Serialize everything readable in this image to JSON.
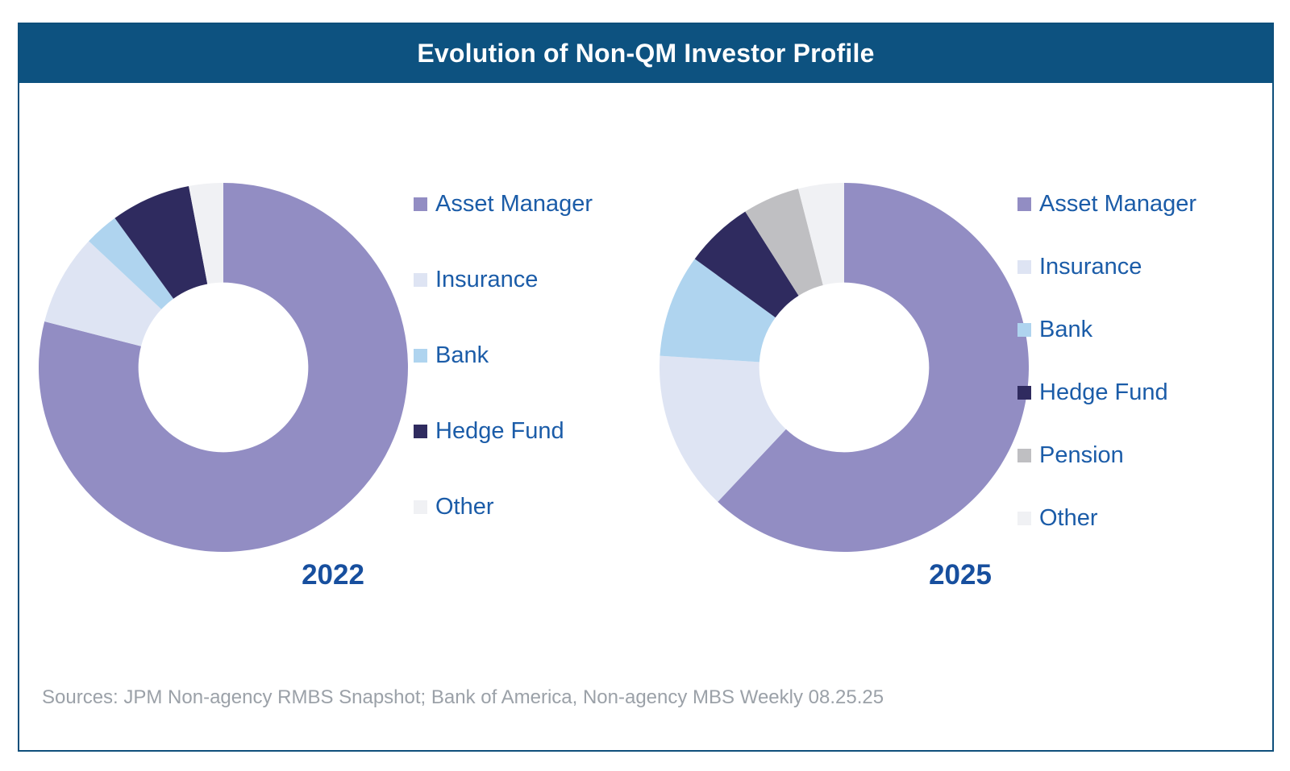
{
  "header": {
    "title": "Evolution of Non-QM Investor Profile"
  },
  "source_note": "Sources: JPM Non-agency RMBS Snapshot; Bank of America, Non-agency MBS Weekly 08.25.25",
  "colors": {
    "header_bg": "#0D5280",
    "card_border": "#0E4F7B",
    "legend_text": "#1B5CA8",
    "year_text": "#174F9E",
    "source_text": "#9BA1A8",
    "series": {
      "Asset Manager": "#928DC3",
      "Insurance": "#DEE4F3",
      "Bank": "#AFD4EF",
      "Hedge Fund": "#2F2B5F",
      "Pension": "#BFBFC2",
      "Other": "#F0F1F4"
    }
  },
  "chart_data": [
    {
      "type": "pie",
      "subtype": "donut",
      "title": "2022",
      "labels": [
        "Asset Manager",
        "Insurance",
        "Bank",
        "Hedge Fund",
        "Other"
      ],
      "values": [
        79,
        8,
        3,
        7,
        3
      ],
      "unit": "percent",
      "start_angle_deg": 0,
      "direction": "clockwise",
      "inner_radius_ratio": 0.46,
      "legend_position": "right",
      "data_labels": false
    },
    {
      "type": "pie",
      "subtype": "donut",
      "title": "2025",
      "labels": [
        "Asset Manager",
        "Insurance",
        "Bank",
        "Hedge Fund",
        "Pension",
        "Other"
      ],
      "values": [
        62,
        14,
        9,
        6,
        5,
        4
      ],
      "unit": "percent",
      "start_angle_deg": 0,
      "direction": "clockwise",
      "inner_radius_ratio": 0.46,
      "legend_position": "right",
      "data_labels": false
    }
  ]
}
